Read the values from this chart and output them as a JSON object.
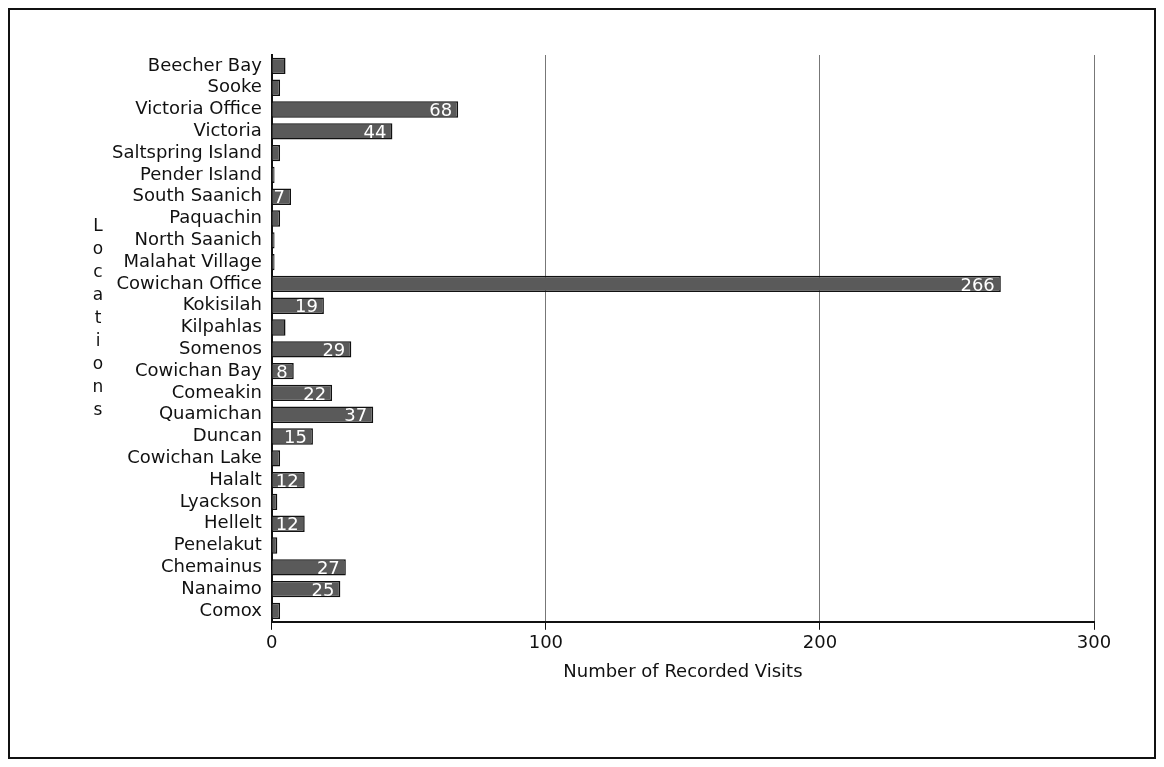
{
  "chart_data": {
    "type": "bar",
    "orientation": "horizontal",
    "xlabel": "Number of Recorded Visits",
    "ylabel": "Locations",
    "categories": [
      "Beecher Bay",
      "Sooke",
      "Victoria Office",
      "Victoria",
      "Saltspring Island",
      "Pender Island",
      "South Saanich",
      "Paquachin",
      "North Saanich",
      "Malahat Village",
      "Cowichan Office",
      "Kokisilah",
      "Kilpahlas",
      "Somenos",
      "Cowichan Bay",
      "Comeakin",
      "Quamichan",
      "Duncan",
      "Cowichan Lake",
      "Halalt",
      "Lyackson",
      "Hellelt",
      "Penelakut",
      "Chemainus",
      "Nanaimo",
      "Comox"
    ],
    "values": [
      5,
      3,
      68,
      44,
      3,
      1,
      7,
      3,
      1,
      1,
      266,
      19,
      5,
      29,
      8,
      22,
      37,
      15,
      3,
      12,
      2,
      12,
      2,
      27,
      25,
      3
    ],
    "value_labels": [
      null,
      null,
      "68",
      "44",
      null,
      null,
      "7",
      null,
      null,
      null,
      "266",
      "19",
      null,
      "29",
      "8",
      "22",
      "37",
      "15",
      null,
      "12",
      null,
      "12",
      null,
      "27",
      "25",
      null
    ],
    "color": "#5a5a5a",
    "xlim": [
      0,
      300
    ],
    "xticks": [
      0,
      100,
      200,
      300
    ],
    "grid": "x",
    "legend": false
  }
}
